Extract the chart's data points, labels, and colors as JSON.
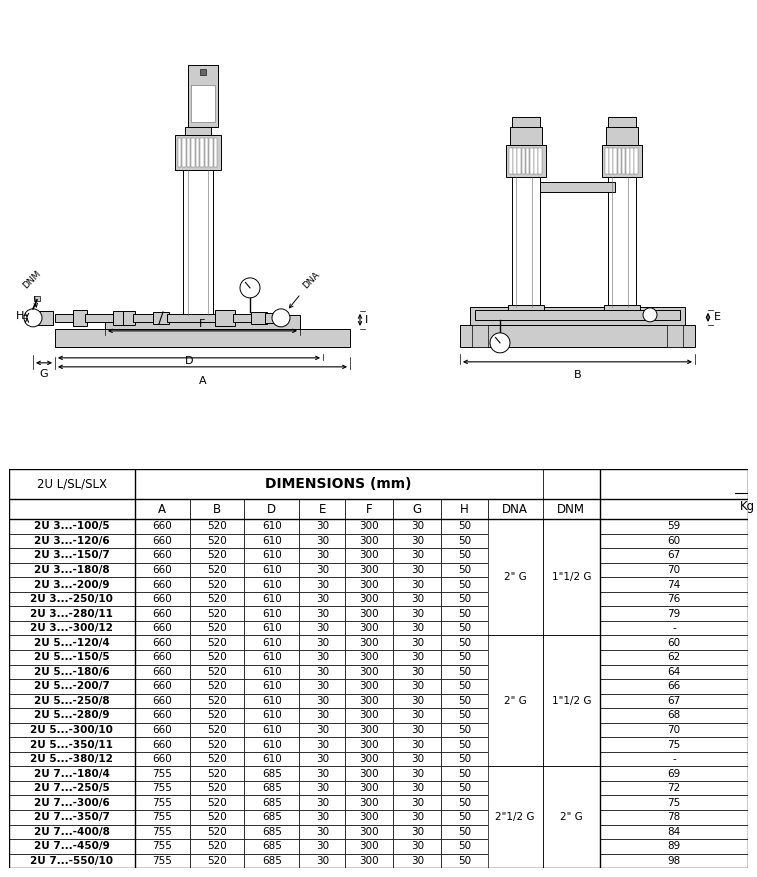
{
  "table_header_col1": "2U L/SL/SLX",
  "table_dim_header": "DIMENSIONS (mm)",
  "table_rows": [
    [
      "2U 3...-100/5",
      660,
      520,
      610,
      30,
      300,
      30,
      50,
      59
    ],
    [
      "2U 3...-120/6",
      660,
      520,
      610,
      30,
      300,
      30,
      50,
      60
    ],
    [
      "2U 3...-150/7",
      660,
      520,
      610,
      30,
      300,
      30,
      50,
      67
    ],
    [
      "2U 3...-180/8",
      660,
      520,
      610,
      30,
      300,
      30,
      50,
      70
    ],
    [
      "2U 3...-200/9",
      660,
      520,
      610,
      30,
      300,
      30,
      50,
      74
    ],
    [
      "2U 3...-250/10",
      660,
      520,
      610,
      30,
      300,
      30,
      50,
      76
    ],
    [
      "2U 3...-280/11",
      660,
      520,
      610,
      30,
      300,
      30,
      50,
      79
    ],
    [
      "2U 3...-300/12",
      660,
      520,
      610,
      30,
      300,
      30,
      50,
      "-"
    ],
    [
      "2U 5...-120/4",
      660,
      520,
      610,
      30,
      300,
      30,
      50,
      60
    ],
    [
      "2U 5...-150/5",
      660,
      520,
      610,
      30,
      300,
      30,
      50,
      62
    ],
    [
      "2U 5...-180/6",
      660,
      520,
      610,
      30,
      300,
      30,
      50,
      64
    ],
    [
      "2U 5...-200/7",
      660,
      520,
      610,
      30,
      300,
      30,
      50,
      66
    ],
    [
      "2U 5...-250/8",
      660,
      520,
      610,
      30,
      300,
      30,
      50,
      67
    ],
    [
      "2U 5...-280/9",
      660,
      520,
      610,
      30,
      300,
      30,
      50,
      68
    ],
    [
      "2U 5...-300/10",
      660,
      520,
      610,
      30,
      300,
      30,
      50,
      70
    ],
    [
      "2U 5...-350/11",
      660,
      520,
      610,
      30,
      300,
      30,
      50,
      75
    ],
    [
      "2U 5...-380/12",
      660,
      520,
      610,
      30,
      300,
      30,
      50,
      "-"
    ],
    [
      "2U 7...-180/4",
      755,
      520,
      685,
      30,
      300,
      30,
      50,
      69
    ],
    [
      "2U 7...-250/5",
      755,
      520,
      685,
      30,
      300,
      30,
      50,
      72
    ],
    [
      "2U 7...-300/6",
      755,
      520,
      685,
      30,
      300,
      30,
      50,
      75
    ],
    [
      "2U 7...-350/7",
      755,
      520,
      685,
      30,
      300,
      30,
      50,
      78
    ],
    [
      "2U 7...-400/8",
      755,
      520,
      685,
      30,
      300,
      30,
      50,
      84
    ],
    [
      "2U 7...-450/9",
      755,
      520,
      685,
      30,
      300,
      30,
      50,
      89
    ],
    [
      "2U 7...-550/10",
      755,
      520,
      685,
      30,
      300,
      30,
      50,
      98
    ]
  ],
  "dna_spans": [
    [
      0,
      7,
      "2\" G"
    ],
    [
      8,
      16,
      "2\" G"
    ],
    [
      17,
      23,
      "2\"1/2 G"
    ]
  ],
  "dnm_spans": [
    [
      0,
      7,
      "1\"1/2 G"
    ],
    [
      8,
      16,
      "1\"1/2 G"
    ],
    [
      17,
      23,
      "2\" G"
    ]
  ],
  "bg_color": "#ffffff",
  "font_size_data": 7.5,
  "font_size_header": 8.5,
  "font_size_dim_header": 10
}
